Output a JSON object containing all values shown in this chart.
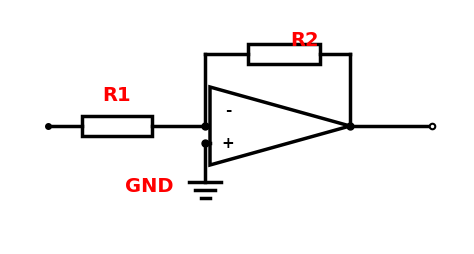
{
  "bg_color": "#ffffff",
  "line_color": "#000000",
  "label_color": "#ff0000",
  "lw": 2.5,
  "r1_label": "R1",
  "r2_label": "R2",
  "gnd_label": "GND",
  "minus_label": "-",
  "plus_label": "+",
  "figsize": [
    4.74,
    2.55
  ],
  "dpi": 100
}
